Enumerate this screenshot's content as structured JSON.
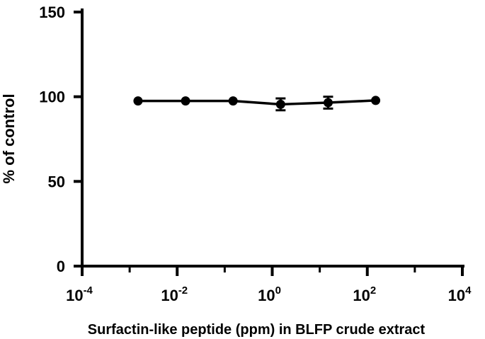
{
  "chart_data": {
    "type": "line",
    "xscale": "log10",
    "xlim": [
      0.0001,
      10000
    ],
    "ylim": [
      0,
      150
    ],
    "x_ticks": [
      {
        "base": "10",
        "exp": "-4",
        "value": 0.0001
      },
      {
        "base": "10",
        "exp": "-2",
        "value": 0.01
      },
      {
        "base": "10",
        "exp": "0",
        "value": 1
      },
      {
        "base": "10",
        "exp": "2",
        "value": 100
      },
      {
        "base": "10",
        "exp": "4",
        "value": 10000
      }
    ],
    "y_ticks": [
      "0",
      "50",
      "100",
      "150"
    ],
    "xlabel": "Surfactin-like peptide (ppm) in BLFP crude extract",
    "ylabel": "% of control",
    "grid": false,
    "series": [
      {
        "color": "#000000",
        "points": [
          {
            "x": 0.0015,
            "y": 97.5,
            "err": 0
          },
          {
            "x": 0.015,
            "y": 97.5,
            "err": 0
          },
          {
            "x": 0.15,
            "y": 97.5,
            "err": 0
          },
          {
            "x": 1.5,
            "y": 95.5,
            "err": 3.5
          },
          {
            "x": 15,
            "y": 96.5,
            "err": 3.5
          },
          {
            "x": 150,
            "y": 97.8,
            "err": 0
          }
        ]
      }
    ]
  }
}
